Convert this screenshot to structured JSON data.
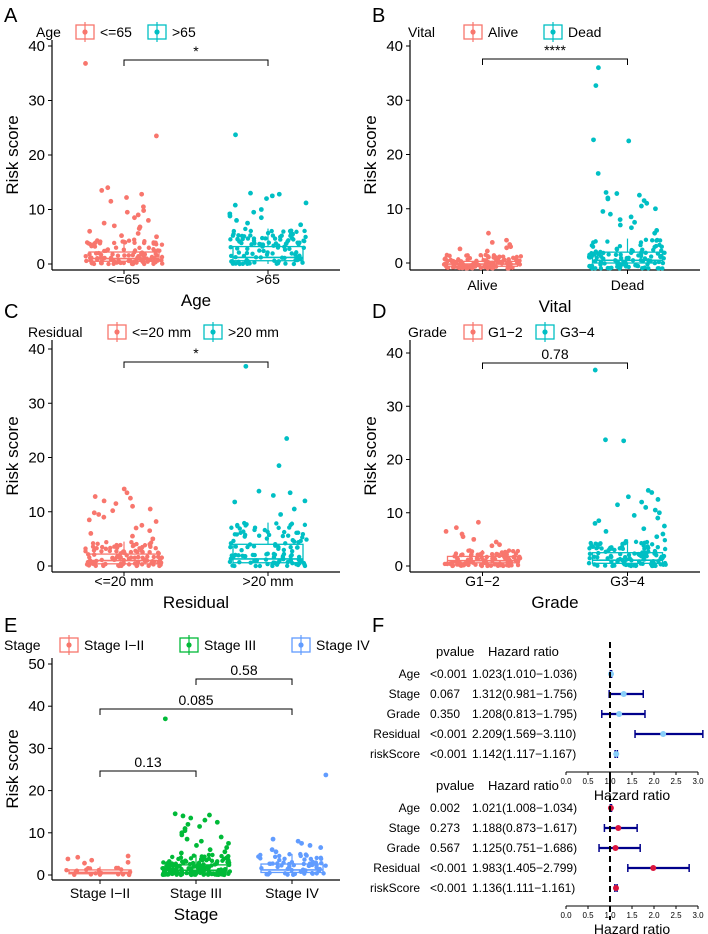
{
  "colors": {
    "salmon": "#f8766d",
    "teal": "#00bfc4",
    "green": "#00ba38",
    "blue": "#619cff",
    "forest_dot": "#87cefa",
    "forest_line": "#00008b",
    "forest_dot2": "#dc143c"
  },
  "chart_data": [
    {
      "type": "boxplot",
      "panel": "A",
      "legend_title": "Age",
      "legend_entries": [
        "<=65",
        ">65"
      ],
      "categories": [
        "<=65",
        ">65"
      ],
      "xlabel": "Age",
      "ylabel": "Risk score",
      "ylim": [
        -2,
        40
      ],
      "yticks": [
        0,
        10,
        20,
        30,
        40
      ],
      "boxes": [
        {
          "category": "<=65",
          "q1": 0.5,
          "median": 1.0,
          "q3": 2.2,
          "whisker_low": 0.0,
          "whisker_high": 4.5,
          "outliers": [
            36.8,
            23.5,
            14.0,
            13.5,
            12.8,
            12.2,
            11.5,
            10.5,
            9.8,
            9.5,
            9.0,
            8.5,
            8.0,
            7.5,
            7.0,
            6.8,
            6.5,
            6.0,
            5.6,
            5.2,
            5.0
          ]
        },
        {
          "category": ">65",
          "q1": 0.6,
          "median": 1.2,
          "q3": 3.2,
          "whisker_low": 0.0,
          "whisker_high": 6.5,
          "outliers": [
            23.7,
            13.0,
            12.8,
            12.5,
            12.0,
            11.2,
            10.8,
            10.0,
            9.5,
            9.2,
            8.8,
            8.5,
            8.0,
            7.5,
            7.2
          ]
        }
      ],
      "comparisons": [
        {
          "from": "<=65",
          "to": ">65",
          "label": "*"
        }
      ]
    },
    {
      "type": "boxplot",
      "panel": "B",
      "legend_title": "Vital",
      "legend_entries": [
        "Alive",
        "Dead"
      ],
      "categories": [
        "Alive",
        "Dead"
      ],
      "xlabel": "Vital",
      "ylabel": "Risk score",
      "ylim": [
        -2,
        40
      ],
      "yticks": [
        0,
        10,
        20,
        30,
        40
      ],
      "boxes": [
        {
          "category": "Alive",
          "q1": -0.6,
          "median": -0.2,
          "q3": 0.3,
          "whisker_low": -1.0,
          "whisker_high": 1.5,
          "outliers": [
            5.5,
            4.2,
            3.8,
            3.4,
            3.0,
            2.8,
            2.6,
            2.2
          ]
        },
        {
          "category": "Dead",
          "q1": 0.0,
          "median": 0.5,
          "q3": 2.0,
          "whisker_low": -1.0,
          "whisker_high": 4.5,
          "outliers": [
            36.0,
            32.7,
            22.7,
            22.5,
            16.5,
            13.0,
            12.8,
            12.5,
            12.0,
            11.8,
            11.5,
            11.0,
            10.5,
            10.0,
            9.5,
            9.0,
            8.5,
            8.0,
            7.5,
            7.0,
            6.5,
            6.0,
            5.5
          ]
        }
      ],
      "comparisons": [
        {
          "from": "Alive",
          "to": "Dead",
          "label": "****"
        }
      ]
    },
    {
      "type": "boxplot",
      "panel": "C",
      "legend_title": "Residual",
      "legend_entries": [
        "<=20 mm",
        ">20 mm"
      ],
      "categories": [
        "<=20 mm",
        ">20 mm"
      ],
      "xlabel": "Residual",
      "ylabel": "Risk score",
      "ylim": [
        -1,
        40
      ],
      "yticks": [
        0,
        10,
        20,
        30,
        40
      ],
      "boxes": [
        {
          "category": "<=20 mm",
          "q1": 0.4,
          "median": 1.0,
          "q3": 2.2,
          "whisker_low": 0.0,
          "whisker_high": 4.5,
          "outliers": [
            14.2,
            13.5,
            12.8,
            12.5,
            12.0,
            11.5,
            11.0,
            10.5,
            10.2,
            9.8,
            9.5,
            9.0,
            8.5,
            8.2,
            7.5,
            7.0,
            6.5,
            6.0,
            5.5,
            5.0
          ]
        },
        {
          "category": ">20 mm",
          "q1": 0.6,
          "median": 1.3,
          "q3": 4.0,
          "whisker_low": 0.0,
          "whisker_high": 8.0,
          "outliers": [
            36.8,
            23.5,
            18.5,
            13.8,
            13.5,
            13.0,
            12.0,
            11.8,
            10.5,
            9.5
          ]
        }
      ],
      "comparisons": [
        {
          "from": "<=20 mm",
          "to": ">20 mm",
          "label": "*"
        }
      ]
    },
    {
      "type": "boxplot",
      "panel": "D",
      "legend_title": "Grade",
      "legend_entries": [
        "G1−2",
        "G3−4"
      ],
      "categories": [
        "G1−2",
        "G3−4"
      ],
      "xlabel": "Grade",
      "ylabel": "Risk score",
      "ylim": [
        -1,
        40
      ],
      "yticks": [
        0,
        10,
        20,
        30,
        40
      ],
      "boxes": [
        {
          "category": "G1−2",
          "q1": 0.6,
          "median": 1.0,
          "q3": 1.8,
          "whisker_low": 0.0,
          "whisker_high": 3.0,
          "outliers": [
            8.2,
            7.2,
            6.5,
            6.0,
            5.5,
            5.0,
            4.5,
            4.0,
            3.8
          ]
        },
        {
          "category": "G3−4",
          "q1": 0.5,
          "median": 1.1,
          "q3": 2.5,
          "whisker_low": 0.0,
          "whisker_high": 5.0,
          "outliers": [
            36.8,
            23.7,
            23.5,
            14.2,
            13.8,
            13.0,
            12.5,
            12.0,
            11.5,
            11.0,
            10.5,
            10.0,
            9.5,
            9.0,
            8.5,
            8.0,
            7.5,
            7.0,
            6.5,
            6.0,
            5.5
          ]
        }
      ],
      "comparisons": [
        {
          "from": "G1−2",
          "to": "G3−4",
          "label": "0.78"
        }
      ]
    },
    {
      "type": "boxplot",
      "panel": "E",
      "legend_title": "Stage",
      "legend_entries": [
        "Stage I−II",
        "Stage III",
        "Stage IV"
      ],
      "categories": [
        "Stage I−II",
        "Stage III",
        "Stage IV"
      ],
      "xlabel": "Stage",
      "ylabel": "Risk score",
      "ylim": [
        -1,
        50
      ],
      "yticks": [
        0,
        10,
        20,
        30,
        40,
        50
      ],
      "boxes": [
        {
          "category": "Stage I−II",
          "q1": 0.3,
          "median": 0.6,
          "q3": 1.2,
          "whisker_low": 0.0,
          "whisker_high": 2.0,
          "outliers": [
            4.5,
            4.2,
            3.8,
            3.5,
            3.0,
            2.8
          ]
        },
        {
          "category": "Stage III",
          "q1": 0.5,
          "median": 1.1,
          "q3": 2.4,
          "whisker_low": 0.0,
          "whisker_high": 4.8,
          "outliers": [
            37.0,
            14.5,
            14.2,
            14.0,
            13.5,
            13.0,
            12.5,
            12.0,
            11.5,
            11.0,
            10.5,
            10.0,
            9.5,
            9.0,
            8.5,
            8.0,
            7.5,
            7.0,
            6.5,
            6.0,
            5.5,
            5.2
          ]
        },
        {
          "category": "Stage IV",
          "q1": 0.6,
          "median": 1.2,
          "q3": 2.6,
          "whisker_low": 0.0,
          "whisker_high": 5.0,
          "outliers": [
            23.7,
            8.5,
            8.0,
            7.5,
            7.0,
            6.5,
            6.0,
            5.5
          ]
        }
      ],
      "comparisons": [
        {
          "from": "Stage I−II",
          "to": "Stage III",
          "label": "0.13"
        },
        {
          "from": "Stage I−II",
          "to": "Stage IV",
          "label": "0.085"
        },
        {
          "from": "Stage III",
          "to": "Stage IV",
          "label": "0.58"
        }
      ]
    },
    {
      "type": "forest",
      "panel": "F",
      "analysis": "univariate",
      "col_headers": [
        "pvalue",
        "Hazard ratio"
      ],
      "rows": [
        {
          "name": "Age",
          "pvalue": "<0.001",
          "hr_text": "1.023(1.010−1.036)",
          "hr": 1.023,
          "lo": 1.01,
          "hi": 1.036
        },
        {
          "name": "Stage",
          "pvalue": "0.067",
          "hr_text": "1.312(0.981−1.756)",
          "hr": 1.312,
          "lo": 0.981,
          "hi": 1.756
        },
        {
          "name": "Grade",
          "pvalue": "0.350",
          "hr_text": "1.208(0.813−1.795)",
          "hr": 1.208,
          "lo": 0.813,
          "hi": 1.795
        },
        {
          "name": "Residual",
          "pvalue": "<0.001",
          "hr_text": "2.209(1.569−3.110)",
          "hr": 2.209,
          "lo": 1.569,
          "hi": 3.11
        },
        {
          "name": "riskScore",
          "pvalue": "<0.001",
          "hr_text": "1.142(1.117−1.167)",
          "hr": 1.142,
          "lo": 1.117,
          "hi": 1.167
        }
      ],
      "xlim": [
        0,
        3
      ],
      "xticks": [
        "0.0",
        "0.5",
        "1.0",
        "1.5",
        "2.0",
        "2.5",
        "3.0"
      ],
      "xlabel": "Hazard ratio",
      "reference": 1
    },
    {
      "type": "forest",
      "panel": "F",
      "analysis": "multivariate",
      "col_headers": [
        "pvalue",
        "Hazard ratio"
      ],
      "rows": [
        {
          "name": "Age",
          "pvalue": "0.002",
          "hr_text": "1.021(1.008−1.034)",
          "hr": 1.021,
          "lo": 1.008,
          "hi": 1.034
        },
        {
          "name": "Stage",
          "pvalue": "0.273",
          "hr_text": "1.188(0.873−1.617)",
          "hr": 1.188,
          "lo": 0.873,
          "hi": 1.617
        },
        {
          "name": "Grade",
          "pvalue": "0.567",
          "hr_text": "1.125(0.751−1.686)",
          "hr": 1.125,
          "lo": 0.751,
          "hi": 1.686
        },
        {
          "name": "Residual",
          "pvalue": "<0.001",
          "hr_text": "1.983(1.405−2.799)",
          "hr": 1.983,
          "lo": 1.405,
          "hi": 2.799
        },
        {
          "name": "riskScore",
          "pvalue": "<0.001",
          "hr_text": "1.136(1.111−1.161)",
          "hr": 1.136,
          "lo": 1.111,
          "hi": 1.161
        }
      ],
      "xlim": [
        0,
        3
      ],
      "xticks": [
        "0.0",
        "0.5",
        "1.0",
        "1.5",
        "2.0",
        "2.5",
        "3.0"
      ],
      "xlabel": "Hazard ratio",
      "reference": 1
    }
  ]
}
